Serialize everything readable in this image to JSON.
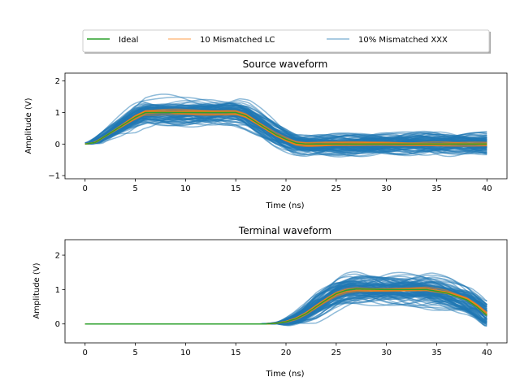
{
  "legend": {
    "placement": "top-center",
    "columns": 3,
    "entries": [
      {
        "label": "Ideal",
        "color": "#2ca02c"
      },
      {
        "label": "10 Mismatched LC",
        "color": "#ff7f0e"
      },
      {
        "label": "10% Mismatched XXX",
        "color": "#1f77b4"
      }
    ]
  },
  "chart_data": [
    {
      "type": "line",
      "title": "Source waveform",
      "xlabel": "Time (ns)",
      "ylabel": "Amplitude (V)",
      "xlim": [
        -2,
        42
      ],
      "ylim": [
        -1.1,
        2.25
      ],
      "xticks": [
        0,
        5,
        10,
        15,
        20,
        25,
        30,
        35,
        40
      ],
      "yticks": [
        -1,
        0,
        1,
        2
      ],
      "grid": false,
      "series": [
        {
          "name": "Ideal",
          "color": "#2ca02c",
          "x": [
            0,
            1,
            2,
            3,
            4,
            5,
            6,
            10,
            15,
            16,
            17,
            18,
            19,
            20,
            21,
            22,
            30,
            40
          ],
          "y": [
            0,
            0.05,
            0.25,
            0.45,
            0.65,
            0.85,
            1.0,
            1.0,
            1.0,
            0.9,
            0.7,
            0.5,
            0.3,
            0.15,
            0.03,
            0,
            0,
            0
          ]
        },
        {
          "name": "10 Mismatched LC",
          "color": "#ff7f0e",
          "x": [
            0,
            1,
            2,
            3,
            4,
            5,
            6,
            10,
            15,
            16,
            17,
            18,
            19,
            20,
            21,
            22,
            30,
            40
          ],
          "y": [
            0,
            0.05,
            0.25,
            0.45,
            0.65,
            0.85,
            1.0,
            1.0,
            1.0,
            0.9,
            0.7,
            0.5,
            0.3,
            0.15,
            0.03,
            0,
            0,
            0
          ],
          "spread": 0.1
        },
        {
          "name": "10% Mismatched XXX",
          "color": "#1f77b4",
          "x": [
            0,
            1,
            2,
            3,
            4,
            5,
            6,
            10,
            15,
            16,
            17,
            18,
            19,
            20,
            21,
            22,
            30,
            40
          ],
          "y": [
            0,
            0.05,
            0.25,
            0.45,
            0.65,
            0.85,
            1.0,
            1.0,
            1.0,
            0.9,
            0.7,
            0.5,
            0.3,
            0.15,
            0.03,
            0,
            0,
            0
          ],
          "spread": 0.45
        }
      ]
    },
    {
      "type": "line",
      "title": "Terminal waveform",
      "xlabel": "Time (ns)",
      "ylabel": "Amplitude (V)",
      "xlim": [
        -2,
        42
      ],
      "ylim": [
        -0.55,
        2.45
      ],
      "xticks": [
        0,
        5,
        10,
        15,
        20,
        25,
        30,
        35,
        40
      ],
      "yticks": [
        0,
        1,
        2
      ],
      "grid": false,
      "series": [
        {
          "name": "Ideal",
          "color": "#2ca02c",
          "x": [
            0,
            5,
            10,
            15,
            18,
            19,
            20,
            21,
            22,
            23,
            24,
            25,
            26,
            27,
            30,
            34,
            36,
            38,
            39,
            40
          ],
          "y": [
            0,
            0,
            0,
            0,
            0,
            0.02,
            0.06,
            0.15,
            0.3,
            0.5,
            0.7,
            0.88,
            0.98,
            1.02,
            1.0,
            1.0,
            0.9,
            0.7,
            0.5,
            0.25
          ]
        },
        {
          "name": "10 Mismatched LC",
          "color": "#ff7f0e",
          "x": [
            0,
            5,
            10,
            15,
            18,
            19,
            20,
            21,
            22,
            23,
            24,
            25,
            26,
            27,
            30,
            34,
            36,
            38,
            39,
            40
          ],
          "y": [
            0,
            0,
            0,
            0,
            0,
            0.02,
            0.06,
            0.15,
            0.3,
            0.5,
            0.7,
            0.88,
            0.98,
            1.02,
            1.0,
            1.0,
            0.9,
            0.7,
            0.5,
            0.25
          ],
          "spread": 0.1
        },
        {
          "name": "10% Mismatched XXX",
          "color": "#1f77b4",
          "x": [
            0,
            5,
            10,
            15,
            18,
            19,
            20,
            21,
            22,
            23,
            24,
            25,
            26,
            27,
            30,
            34,
            36,
            38,
            39,
            40
          ],
          "y": [
            0,
            0,
            0,
            0,
            0,
            0.02,
            0.06,
            0.15,
            0.3,
            0.5,
            0.7,
            0.88,
            0.98,
            1.02,
            1.0,
            1.0,
            0.9,
            0.7,
            0.5,
            0.25
          ],
          "spread": 0.5
        }
      ]
    }
  ]
}
